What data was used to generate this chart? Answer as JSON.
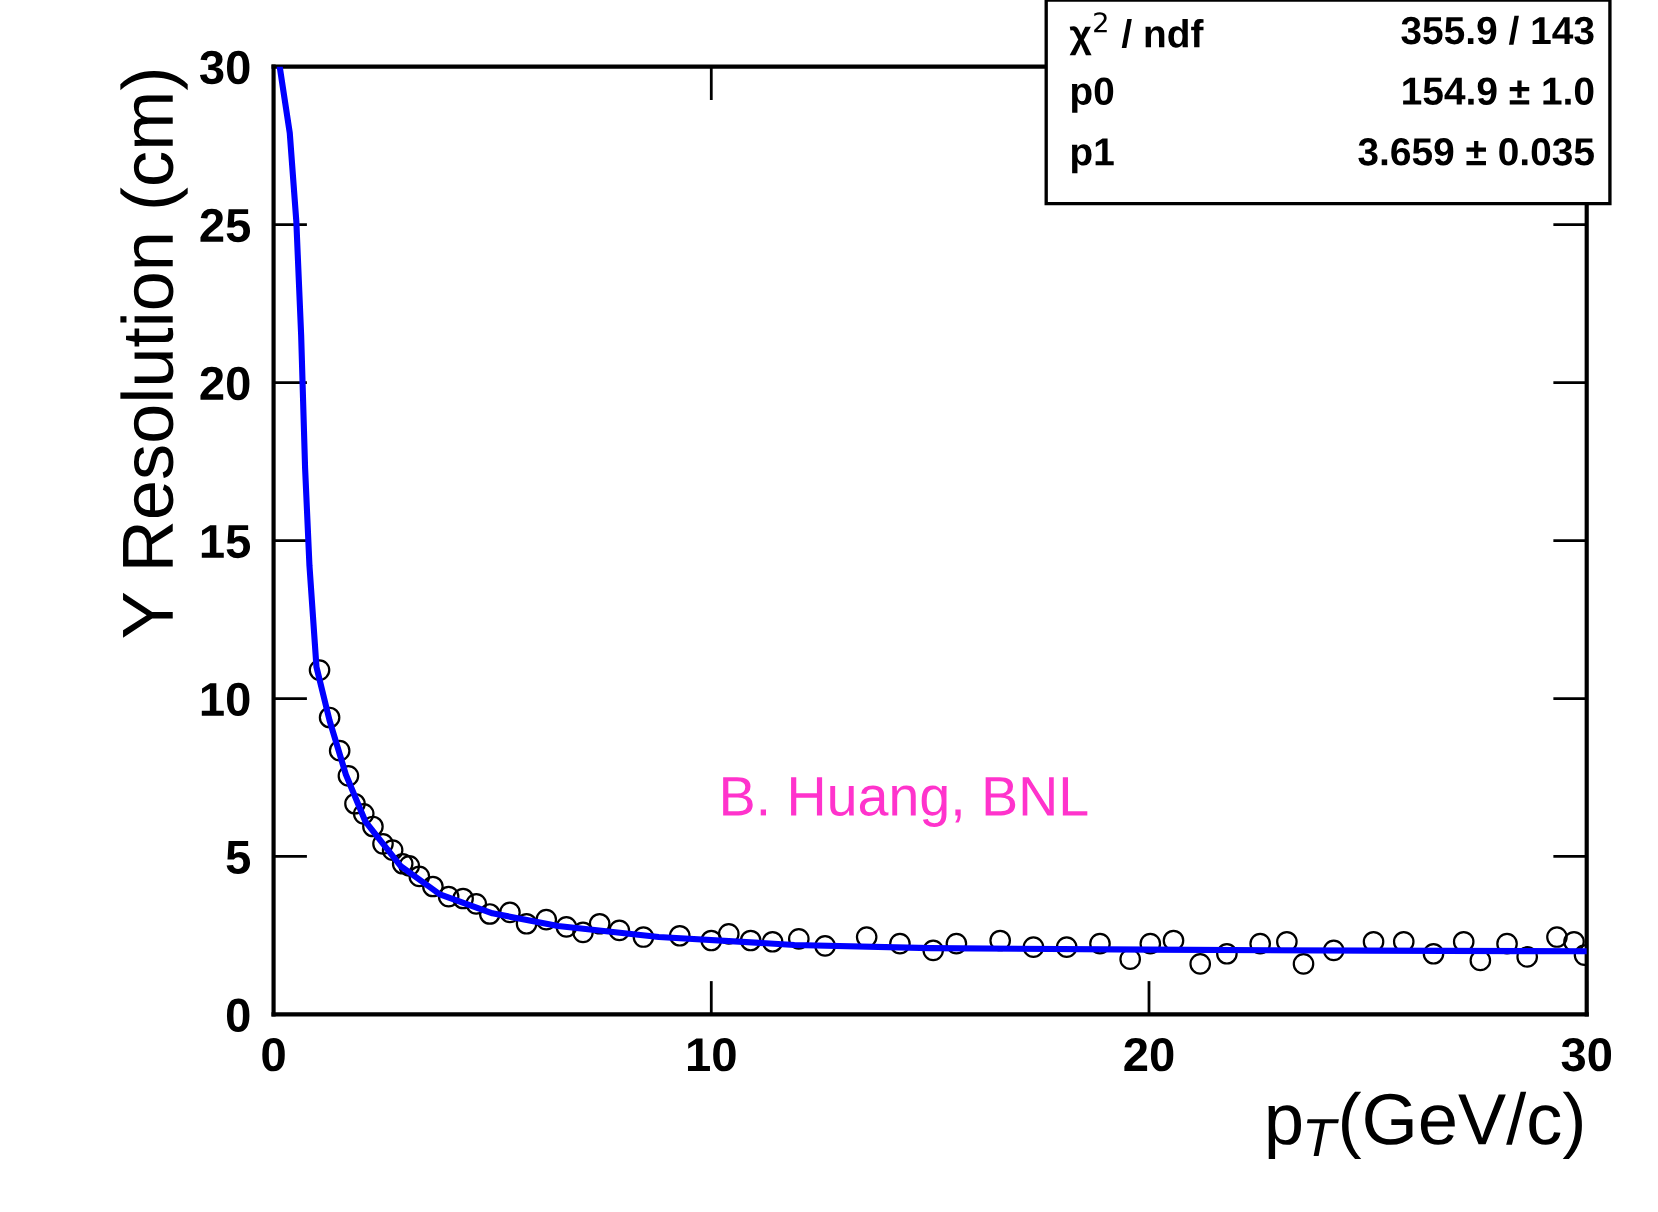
{
  "chart_data": {
    "type": "scatter",
    "xlabel": "p$_{T}$(GeV/c)",
    "ylabel": "Y Resolution (cm)",
    "xlim": [
      0,
      30
    ],
    "xticks": [
      0,
      10,
      20,
      30
    ],
    "ylim": [
      0,
      30
    ],
    "yticks": [
      0,
      5,
      10,
      15,
      20,
      25,
      30
    ],
    "grid": false,
    "marker": "circle",
    "series": [
      {
        "color": "#000000",
        "x": [
          1.05,
          1.28,
          1.51,
          1.71,
          1.86,
          2.06,
          2.27,
          2.5,
          2.72,
          2.95,
          3.1,
          3.33,
          3.64,
          4.0,
          4.33,
          4.63,
          4.94,
          5.4,
          5.78,
          6.23,
          6.69,
          7.07,
          7.45,
          7.9,
          8.45,
          9.28,
          10.0,
          10.4,
          10.9,
          11.4,
          12.0,
          12.6,
          13.55,
          14.31,
          15.07,
          15.6,
          16.6,
          17.36,
          18.12,
          18.88,
          19.57,
          20.03,
          20.56,
          21.17,
          21.78,
          22.54,
          23.15,
          23.53,
          24.22,
          25.13,
          25.82,
          26.5,
          27.19,
          27.57,
          28.18,
          28.64,
          29.32,
          29.71,
          29.95
        ],
        "values": [
          10.9,
          9.4,
          8.35,
          7.55,
          6.67,
          6.35,
          5.95,
          5.4,
          5.2,
          4.77,
          4.7,
          4.37,
          4.05,
          3.73,
          3.67,
          3.5,
          3.18,
          3.23,
          2.87,
          3.0,
          2.77,
          2.6,
          2.87,
          2.66,
          2.45,
          2.49,
          2.34,
          2.55,
          2.34,
          2.3,
          2.39,
          2.17,
          2.45,
          2.24,
          2.03,
          2.24,
          2.34,
          2.13,
          2.13,
          2.24,
          1.75,
          2.24,
          2.34,
          1.6,
          1.92,
          2.24,
          2.3,
          1.6,
          2.03,
          2.3,
          2.3,
          1.92,
          2.3,
          1.71,
          2.24,
          1.82,
          2.45,
          2.3,
          1.88
        ]
      },
      {
        "type": "line",
        "color": "#0000ff",
        "line_style": "solid",
        "marker": "none",
        "x": [
          0.14,
          0.37,
          0.52,
          0.63,
          0.72,
          0.82,
          0.98,
          1.28,
          1.65,
          2.1,
          2.9,
          3.8,
          5.0,
          6.5,
          8.8,
          11.9,
          15,
          20,
          25,
          30
        ],
        "values": [
          30,
          27.9,
          25.1,
          21.5,
          17.3,
          14.2,
          11.0,
          9.3,
          7.6,
          6.1,
          4.7,
          3.8,
          3.2,
          2.8,
          2.45,
          2.2,
          2.1,
          2.05,
          2.02,
          2.0
        ]
      }
    ],
    "annotations": [
      "χ$^{2}$ / ndf",
      "355.9 / 143",
      "p0",
      "154.9 ± 1.0",
      "p1",
      "3.659 ± 0.035",
      {
        "text": "B. Huang, BNL"
      }
    ]
  }
}
